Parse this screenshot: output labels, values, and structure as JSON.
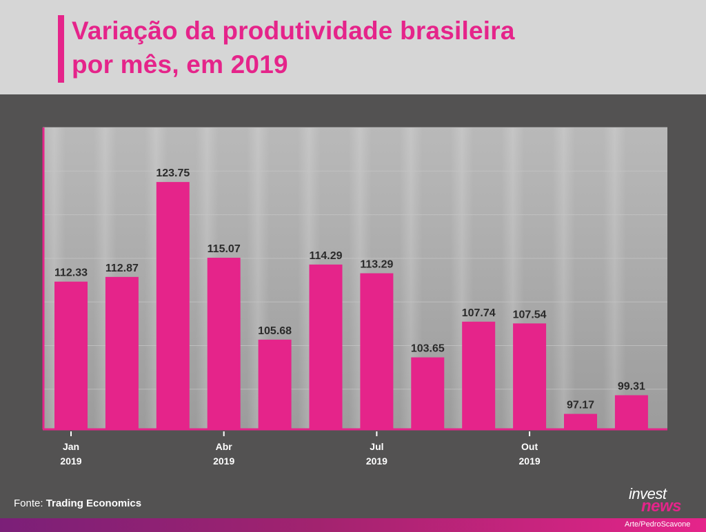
{
  "header": {
    "title_line1": "Variação da produtividade brasileira",
    "title_line2": "por mês, em 2019"
  },
  "footer": {
    "source_label": "Fonte:",
    "source_value": "Trading Economics",
    "credit": "Arte/PedroScavone",
    "logo_top": "invest",
    "logo_bottom": "news"
  },
  "colors": {
    "bar": "#e5248a",
    "header_bg": "#d6d6d6",
    "background": "#535252",
    "plot_bg": "#a9a9a9"
  },
  "chart_data": {
    "type": "bar",
    "title": "Variação da produtividade brasileira por mês, em 2019",
    "values": [
      112.33,
      112.87,
      123.75,
      115.07,
      105.68,
      114.29,
      113.29,
      103.65,
      107.74,
      107.54,
      97.17,
      99.31
    ],
    "data_labels": [
      "112.33",
      "112.87",
      "123.75",
      "115.07",
      "105.68",
      "114.29",
      "113.29",
      "103.65",
      "107.74",
      "107.54",
      "97.17",
      "99.31"
    ],
    "tick_labels": [
      {
        "index": 0,
        "month": "Jan",
        "year": "2019"
      },
      {
        "index": 3,
        "month": "Abr",
        "year": "2019"
      },
      {
        "index": 6,
        "month": "Jul",
        "year": "2019"
      },
      {
        "index": 9,
        "month": "Out",
        "year": "2019"
      }
    ],
    "ylim": [
      95.4,
      130
    ],
    "grid": true,
    "grid_step": 5,
    "xlabel": "",
    "ylabel": ""
  }
}
